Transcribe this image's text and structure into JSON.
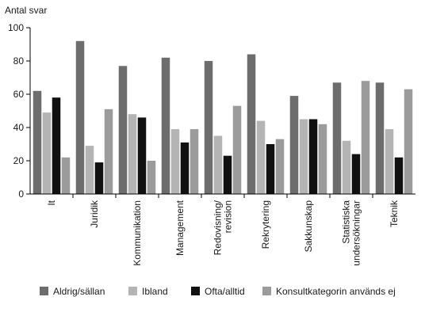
{
  "chart_data": {
    "type": "bar",
    "ylabel": "Antal svar",
    "xlabel": "",
    "title": "",
    "ylim": [
      0,
      100
    ],
    "yticks": [
      0,
      20,
      40,
      60,
      80,
      100
    ],
    "grid": false,
    "legend_position": "bottom",
    "categories": [
      [
        "It"
      ],
      [
        "Juridik"
      ],
      [
        "Kommunikation"
      ],
      [
        "Management"
      ],
      [
        "Redovisning/",
        "revision"
      ],
      [
        "Rekrytering"
      ],
      [
        "Sakkunskap"
      ],
      [
        "Statistiska",
        "undersökningar"
      ],
      [
        "Teknik"
      ]
    ],
    "series": [
      {
        "name": "Aldrig/sällan",
        "color": "#6d6d6d",
        "values": [
          62,
          92,
          77,
          82,
          80,
          84,
          59,
          67,
          67
        ]
      },
      {
        "name": "Ibland",
        "color": "#b4b4b4",
        "values": [
          49,
          29,
          48,
          39,
          35,
          44,
          45,
          32,
          39
        ]
      },
      {
        "name": "Ofta/alltid",
        "color": "#111111",
        "values": [
          58,
          19,
          46,
          31,
          23,
          30,
          45,
          24,
          22
        ]
      },
      {
        "name": "Konsultkategorin används ej",
        "color": "#9b9b9b",
        "values": [
          22,
          51,
          20,
          39,
          53,
          33,
          42,
          68,
          63
        ]
      }
    ]
  }
}
